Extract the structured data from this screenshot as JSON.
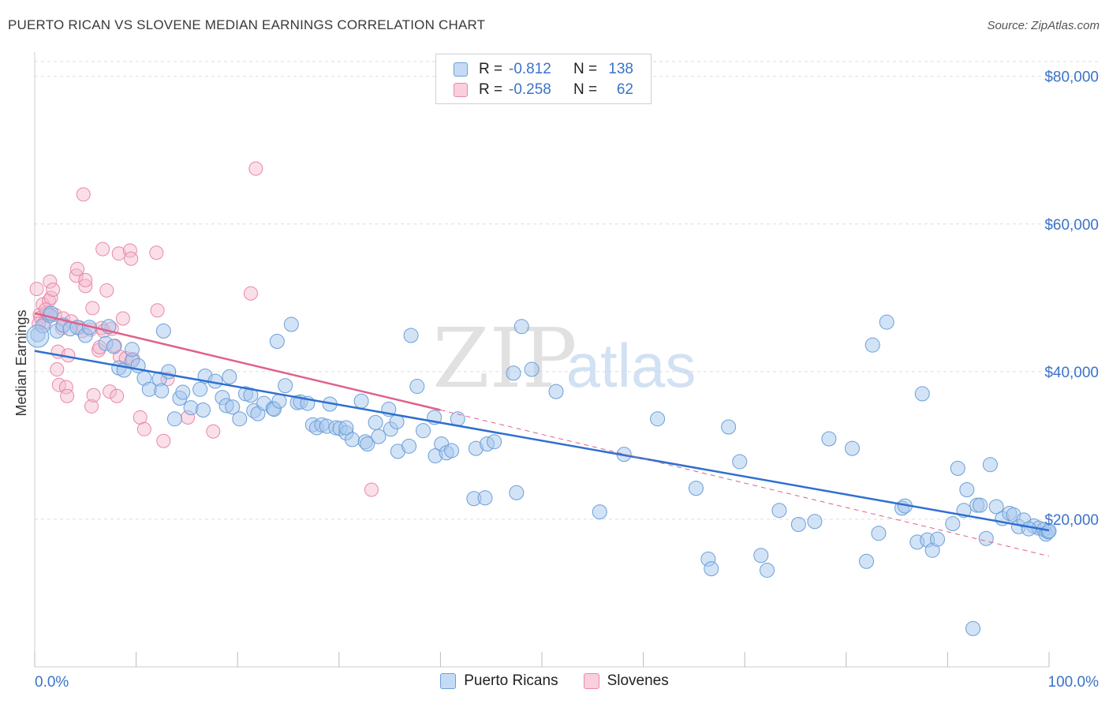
{
  "header": {
    "title": "PUERTO RICAN VS SLOVENE MEDIAN EARNINGS CORRELATION CHART",
    "source": "Source: ZipAtlas.com"
  },
  "watermark": {
    "zip": "ZIP",
    "atlas": "atlas"
  },
  "legend": {
    "rows": [
      {
        "r_label": "R =",
        "r_value": "-0.812",
        "n_label": "N =",
        "n_value": "138"
      },
      {
        "r_label": "R =",
        "r_value": "-0.258",
        "n_label": "N =",
        "n_value": "62"
      }
    ]
  },
  "colors": {
    "blue_fill": "#a8c8ee",
    "blue_stroke": "#6a9fd8",
    "blue_line": "#2f6fd0",
    "pink_fill": "#f5b8cc",
    "pink_stroke": "#e889a8",
    "pink_line": "#e0608a",
    "axis_text": "#3a73c8",
    "grid": "#dddddd"
  },
  "chart_data": {
    "type": "scatter",
    "title": "PUERTO RICAN VS SLOVENE MEDIAN EARNINGS CORRELATION CHART",
    "xlabel": "",
    "ylabel": "Median Earnings",
    "xlim": [
      0,
      100
    ],
    "ylim": [
      0,
      82000
    ],
    "x_tick_labels": [
      "0.0%",
      "100.0%"
    ],
    "y_ticks": [
      20000,
      40000,
      60000,
      80000
    ],
    "y_tick_labels": [
      "$20,000",
      "$40,000",
      "$60,000",
      "$80,000"
    ],
    "grid": true,
    "legend_position": "top-center",
    "series": [
      {
        "name": "Puerto Ricans",
        "color": "#a8c8ee",
        "trend": {
          "x": [
            0,
            100
          ],
          "y": [
            42800,
            18500
          ]
        },
        "points": [
          [
            0.3,
            45000
          ],
          [
            0.8,
            46200
          ],
          [
            1.5,
            47600
          ],
          [
            1.6,
            47900
          ],
          [
            2.2,
            45500
          ],
          [
            2.8,
            46300
          ],
          [
            3.5,
            45800
          ],
          [
            4.2,
            46000
          ],
          [
            5.0,
            44900
          ],
          [
            5.4,
            46000
          ],
          [
            7.0,
            43800
          ],
          [
            7.3,
            46100
          ],
          [
            7.8,
            43400
          ],
          [
            8.3,
            40500
          ],
          [
            8.8,
            40200
          ],
          [
            9.6,
            41500
          ],
          [
            9.6,
            43000
          ],
          [
            10.2,
            40800
          ],
          [
            10.8,
            39100
          ],
          [
            11.3,
            37600
          ],
          [
            12.3,
            39000
          ],
          [
            12.7,
            45500
          ],
          [
            12.5,
            37400
          ],
          [
            13.2,
            40000
          ],
          [
            13.8,
            33600
          ],
          [
            14.3,
            36400
          ],
          [
            14.6,
            37200
          ],
          [
            15.4,
            35100
          ],
          [
            16.3,
            37600
          ],
          [
            16.6,
            34800
          ],
          [
            16.8,
            39400
          ],
          [
            17.8,
            38700
          ],
          [
            18.5,
            36500
          ],
          [
            18.9,
            35400
          ],
          [
            19.2,
            39300
          ],
          [
            19.5,
            35200
          ],
          [
            20.2,
            33600
          ],
          [
            20.8,
            37000
          ],
          [
            21.3,
            36800
          ],
          [
            21.6,
            34700
          ],
          [
            22.0,
            34300
          ],
          [
            22.6,
            35700
          ],
          [
            23.5,
            35000
          ],
          [
            23.6,
            34900
          ],
          [
            23.9,
            44100
          ],
          [
            24.1,
            36000
          ],
          [
            24.7,
            38100
          ],
          [
            25.3,
            46400
          ],
          [
            25.9,
            35800
          ],
          [
            26.2,
            35900
          ],
          [
            26.9,
            35700
          ],
          [
            27.4,
            32800
          ],
          [
            27.8,
            32400
          ],
          [
            28.3,
            32800
          ],
          [
            28.8,
            32600
          ],
          [
            29.1,
            35600
          ],
          [
            29.7,
            32400
          ],
          [
            30.1,
            32300
          ],
          [
            30.7,
            31700
          ],
          [
            30.7,
            32400
          ],
          [
            31.3,
            30800
          ],
          [
            32.2,
            36000
          ],
          [
            32.6,
            30500
          ],
          [
            32.8,
            30200
          ],
          [
            33.6,
            33100
          ],
          [
            33.9,
            31200
          ],
          [
            34.9,
            34900
          ],
          [
            35.1,
            32200
          ],
          [
            35.7,
            33200
          ],
          [
            35.8,
            29200
          ],
          [
            36.9,
            29900
          ],
          [
            37.1,
            44900
          ],
          [
            37.7,
            38000
          ],
          [
            38.3,
            32000
          ],
          [
            39.4,
            33800
          ],
          [
            39.5,
            28600
          ],
          [
            40.1,
            30200
          ],
          [
            40.6,
            29000
          ],
          [
            41.1,
            29300
          ],
          [
            41.7,
            33600
          ],
          [
            43.3,
            22800
          ],
          [
            43.5,
            29600
          ],
          [
            44.4,
            22900
          ],
          [
            44.6,
            30200
          ],
          [
            45.3,
            30500
          ],
          [
            47.2,
            39800
          ],
          [
            47.5,
            23600
          ],
          [
            48.0,
            46100
          ],
          [
            49.0,
            40300
          ],
          [
            51.4,
            37300
          ],
          [
            55.7,
            21000
          ],
          [
            58.1,
            28800
          ],
          [
            61.4,
            33600
          ],
          [
            65.2,
            24200
          ],
          [
            66.4,
            14600
          ],
          [
            66.7,
            13300
          ],
          [
            68.4,
            32500
          ],
          [
            69.5,
            27800
          ],
          [
            71.6,
            15100
          ],
          [
            72.2,
            13100
          ],
          [
            73.4,
            21200
          ],
          [
            75.3,
            19300
          ],
          [
            76.9,
            19700
          ],
          [
            78.3,
            30900
          ],
          [
            80.6,
            29600
          ],
          [
            82.0,
            14300
          ],
          [
            82.6,
            43600
          ],
          [
            83.2,
            18100
          ],
          [
            84.0,
            46700
          ],
          [
            85.5,
            21500
          ],
          [
            85.8,
            21800
          ],
          [
            87.0,
            16900
          ],
          [
            87.5,
            37000
          ],
          [
            88.0,
            17200
          ],
          [
            88.5,
            15800
          ],
          [
            89.0,
            17300
          ],
          [
            90.5,
            19400
          ],
          [
            91.0,
            26900
          ],
          [
            91.6,
            21200
          ],
          [
            91.9,
            24000
          ],
          [
            92.5,
            5200
          ],
          [
            92.9,
            21900
          ],
          [
            93.2,
            21900
          ],
          [
            93.8,
            17400
          ],
          [
            94.2,
            27400
          ],
          [
            94.8,
            21700
          ],
          [
            95.4,
            20100
          ],
          [
            96.1,
            20800
          ],
          [
            96.5,
            20600
          ],
          [
            97.0,
            19000
          ],
          [
            97.5,
            19900
          ],
          [
            98.5,
            19100
          ],
          [
            99.0,
            18800
          ],
          [
            99.5,
            18600
          ],
          [
            99.7,
            18000
          ],
          [
            99.9,
            18300
          ],
          [
            100.0,
            18400
          ],
          [
            98.0,
            18700
          ]
        ]
      },
      {
        "name": "Slovenes",
        "color": "#f5b8cc",
        "trend": {
          "x": [
            0,
            40
          ],
          "y": [
            47900,
            34800
          ]
        },
        "trend_extended": {
          "x": [
            40,
            100
          ],
          "y": [
            34800,
            15000
          ]
        },
        "points": [
          [
            0.2,
            51200
          ],
          [
            0.5,
            47700
          ],
          [
            0.6,
            47300
          ],
          [
            0.8,
            49100
          ],
          [
            1.0,
            46700
          ],
          [
            1.2,
            48000
          ],
          [
            1.3,
            47800
          ],
          [
            1.4,
            49600
          ],
          [
            1.5,
            52200
          ],
          [
            1.6,
            50000
          ],
          [
            1.8,
            51100
          ],
          [
            2.0,
            47700
          ],
          [
            2.2,
            40300
          ],
          [
            2.3,
            42700
          ],
          [
            2.4,
            38200
          ],
          [
            2.7,
            45900
          ],
          [
            2.8,
            47200
          ],
          [
            3.1,
            37900
          ],
          [
            3.2,
            36700
          ],
          [
            3.3,
            42200
          ],
          [
            3.6,
            46800
          ],
          [
            4.1,
            53000
          ],
          [
            4.2,
            53900
          ],
          [
            4.4,
            46000
          ],
          [
            4.7,
            45500
          ],
          [
            4.8,
            64000
          ],
          [
            5.0,
            51600
          ],
          [
            5.0,
            52400
          ],
          [
            5.5,
            45700
          ],
          [
            5.6,
            35300
          ],
          [
            5.7,
            48600
          ],
          [
            5.8,
            36800
          ],
          [
            6.3,
            42900
          ],
          [
            6.4,
            43300
          ],
          [
            6.6,
            45900
          ],
          [
            6.7,
            56600
          ],
          [
            6.8,
            45500
          ],
          [
            7.1,
            51000
          ],
          [
            7.4,
            37300
          ],
          [
            7.6,
            45800
          ],
          [
            7.9,
            43500
          ],
          [
            8.1,
            36700
          ],
          [
            8.3,
            56000
          ],
          [
            8.4,
            42000
          ],
          [
            8.7,
            47200
          ],
          [
            9.0,
            41800
          ],
          [
            9.4,
            56400
          ],
          [
            9.5,
            55300
          ],
          [
            9.7,
            41700
          ],
          [
            10.4,
            33800
          ],
          [
            10.8,
            32200
          ],
          [
            12.0,
            56100
          ],
          [
            12.1,
            48300
          ],
          [
            12.7,
            30600
          ],
          [
            13.1,
            39000
          ],
          [
            15.1,
            33800
          ],
          [
            17.6,
            31900
          ],
          [
            21.3,
            50600
          ],
          [
            21.8,
            67500
          ],
          [
            33.2,
            24000
          ],
          [
            0.4,
            46500
          ],
          [
            1.1,
            48400
          ]
        ]
      }
    ]
  }
}
